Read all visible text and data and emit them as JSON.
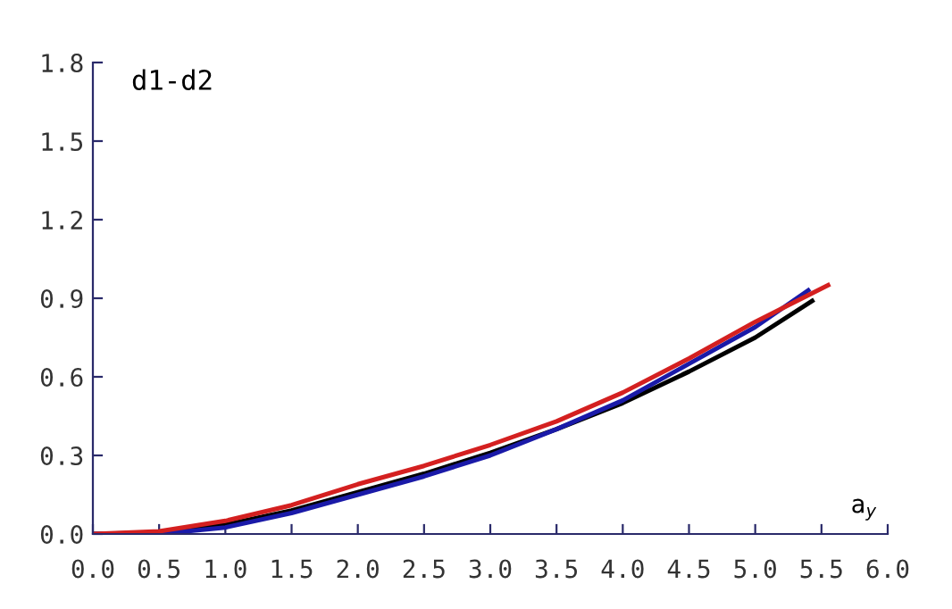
{
  "chart_data": {
    "type": "line",
    "xlabel": "a$_{y}$",
    "ylabel": "d1-d2",
    "xlim": [
      0,
      6.0
    ],
    "ylim": [
      0,
      1.8
    ],
    "xticks": [
      {
        "value": 0,
        "label": "0.0"
      },
      0.5,
      {
        "value": 1,
        "label": "1.0"
      },
      1.5,
      {
        "value": 2,
        "label": "2.0"
      },
      2.5,
      {
        "value": 3,
        "label": "3.0"
      },
      3.5,
      {
        "value": 4,
        "label": "4.0"
      },
      4.5,
      {
        "value": 5,
        "label": "5.0"
      },
      5.5,
      {
        "value": 6,
        "label": "6.0"
      }
    ],
    "yticks": [
      {
        "value": 0,
        "label": "0.0"
      },
      0.3,
      0.6,
      0.9,
      1.2,
      1.5,
      1.8
    ],
    "grid": false,
    "legend": false,
    "series": [
      {
        "color": "#000000",
        "x": [
          0,
          0.5,
          1.0,
          1.5,
          2.0,
          2.5,
          3.0,
          3.5,
          4.0,
          4.5,
          5.0,
          5.43
        ],
        "values": [
          0,
          0.005,
          0.035,
          0.09,
          0.16,
          0.23,
          0.31,
          0.4,
          0.5,
          0.62,
          0.75,
          0.89
        ]
      },
      {
        "color": "#1a1aa8",
        "x": [
          0,
          0.5,
          1.0,
          1.5,
          2.0,
          2.5,
          3.0,
          3.5,
          4.0,
          4.5,
          5.0,
          5.4
        ],
        "values": [
          0,
          0.0,
          0.025,
          0.08,
          0.15,
          0.22,
          0.3,
          0.4,
          0.51,
          0.65,
          0.79,
          0.93
        ]
      },
      {
        "color": "#d42020",
        "x": [
          0,
          0.5,
          1.0,
          1.5,
          2.0,
          2.5,
          3.0,
          3.5,
          4.0,
          4.5,
          5.0,
          5.55
        ],
        "values": [
          0,
          0.01,
          0.05,
          0.11,
          0.19,
          0.26,
          0.34,
          0.43,
          0.54,
          0.67,
          0.81,
          0.95
        ]
      }
    ]
  }
}
